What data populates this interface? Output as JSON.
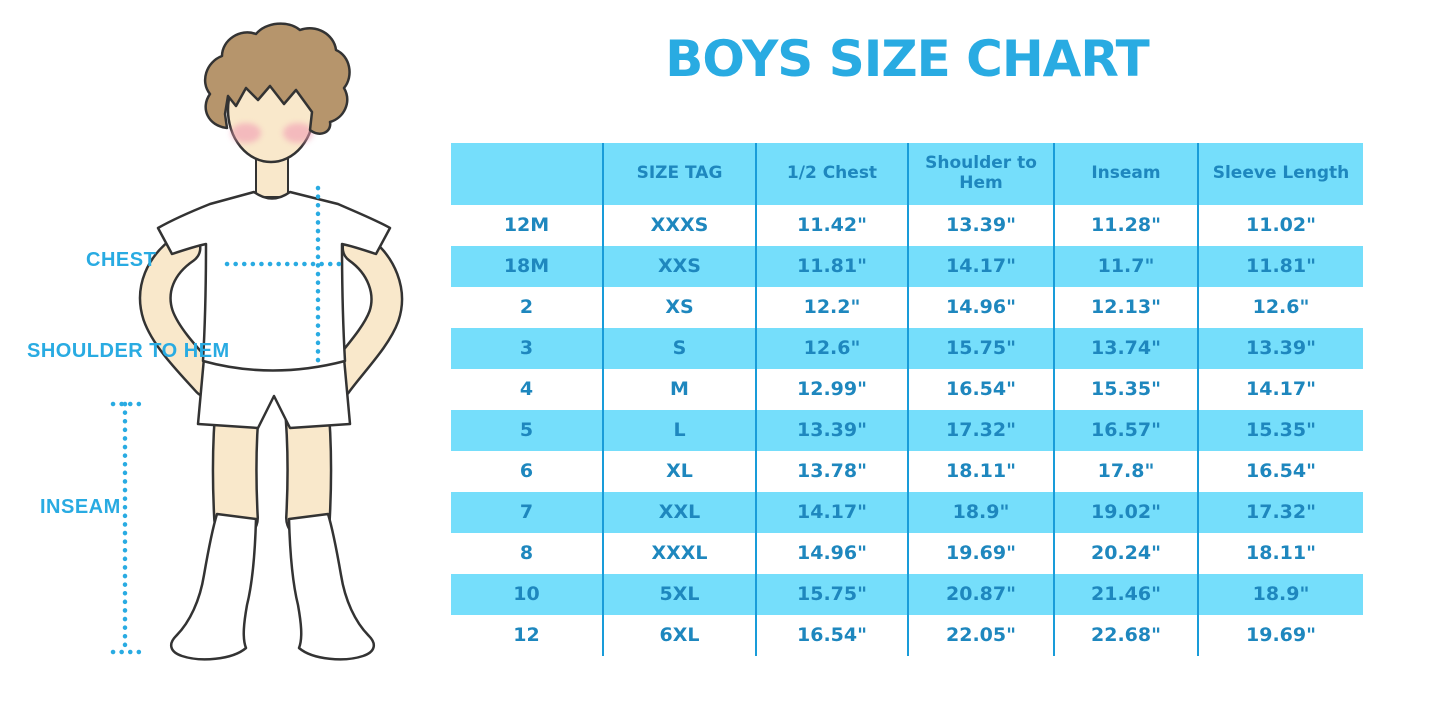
{
  "title": "BOYS SIZE CHART",
  "colors": {
    "title_blue": "#29ABE2",
    "label_blue": "#29ABE2",
    "table_text_blue": "#1E87BE",
    "band_cyan": "#75DEFB",
    "divider_blue": "#199CD9",
    "dotted_line_blue": "#29ABE2",
    "skin": "#F9E8CB",
    "hair_brown": "#B6956C",
    "blush_pink": "#F19CB4",
    "outline": "#333333"
  },
  "figure": {
    "description": "boy-illustration",
    "labels": [
      {
        "text": "CHEST"
      },
      {
        "text": "SHOULDER TO HEM"
      },
      {
        "text": "INSEAM"
      }
    ]
  },
  "table": {
    "columns": [
      "",
      "SIZE TAG",
      "1/2 Chest",
      "Shoulder to Hem",
      "Inseam",
      "Sleeve Length"
    ],
    "rows": [
      [
        "12M",
        "XXXS",
        "11.42\"",
        "13.39\"",
        "11.28\"",
        "11.02\""
      ],
      [
        "18M",
        "XXS",
        "11.81\"",
        "14.17\"",
        "11.7\"",
        "11.81\""
      ],
      [
        "2",
        "XS",
        "12.2\"",
        "14.96\"",
        "12.13\"",
        "12.6\""
      ],
      [
        "3",
        "S",
        "12.6\"",
        "15.75\"",
        "13.74\"",
        "13.39\""
      ],
      [
        "4",
        "M",
        "12.99\"",
        "16.54\"",
        "15.35\"",
        "14.17\""
      ],
      [
        "5",
        "L",
        "13.39\"",
        "17.32\"",
        "16.57\"",
        "15.35\""
      ],
      [
        "6",
        "XL",
        "13.78\"",
        "18.11\"",
        "17.8\"",
        "16.54\""
      ],
      [
        "7",
        "XXL",
        "14.17\"",
        "18.9\"",
        "19.02\"",
        "17.32\""
      ],
      [
        "8",
        "XXXL",
        "14.96\"",
        "19.69\"",
        "20.24\"",
        "18.11\""
      ],
      [
        "10",
        "5XL",
        "15.75\"",
        "20.87\"",
        "21.46\"",
        "18.9\""
      ],
      [
        "12",
        "6XL",
        "16.54\"",
        "22.05\"",
        "22.68\"",
        "19.69\""
      ]
    ]
  }
}
